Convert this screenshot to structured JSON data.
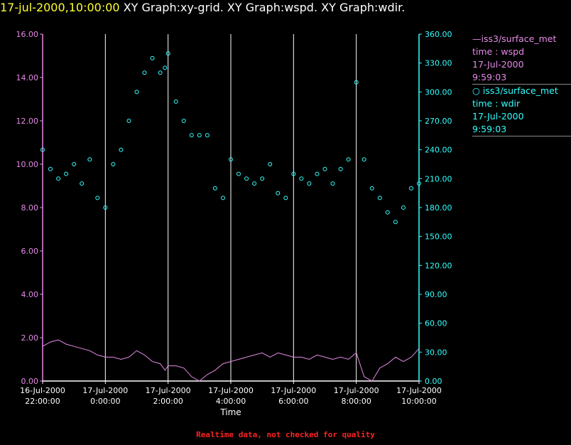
{
  "header": {
    "timestamp": "17-jul-2000,10:00:00",
    "graphs": "XY Graph:xy-grid.  XY Graph:wspd.  XY Graph:wdir."
  },
  "legend": {
    "series1": {
      "name": "iss3/surface_met",
      "vars": "time : wspd",
      "date": "17-Jul-2000",
      "time": "9:59:03"
    },
    "series2": {
      "name": "iss3/surface_met",
      "vars": "time : wdir",
      "date": "17-Jul-2000",
      "time": "9:59:03"
    }
  },
  "footer": "Realtime data, not checked for quality",
  "colors": {
    "wspd": "#e58ae5",
    "wdir": "#33ffff",
    "title": "#ffff33",
    "footer": "#ff2222",
    "grid": "#ffffff"
  },
  "chart_data": {
    "type": "scatter",
    "xlabel": "Time",
    "x_unit": "hours since 16-Jul-2000 22:00",
    "xlim": [
      0,
      12
    ],
    "x_ticks": [
      {
        "value": 0,
        "date": "16-Jul-2000",
        "time": "22:00:00"
      },
      {
        "value": 2,
        "date": "17-Jul-2000",
        "time": "0:00:00"
      },
      {
        "value": 4,
        "date": "17-Jul-2000",
        "time": "2:00:00"
      },
      {
        "value": 6,
        "date": "17-Jul-2000",
        "time": "4:00:00"
      },
      {
        "value": 8,
        "date": "17-Jul-2000",
        "time": "6:00:00"
      },
      {
        "value": 10,
        "date": "17-Jul-2000",
        "time": "8:00:00"
      },
      {
        "value": 12,
        "date": "17-Jul-2000",
        "time": "10:00:00"
      }
    ],
    "vertical_grid": true,
    "left_axis": {
      "variable": "wspd",
      "ylim": [
        0,
        16
      ],
      "ticks": [
        "0.00",
        "2.00",
        "4.00",
        "6.00",
        "8.00",
        "10.00",
        "12.00",
        "14.00",
        "16.00"
      ]
    },
    "right_axis": {
      "variable": "wdir",
      "ylim": [
        0,
        360
      ],
      "ticks": [
        "0.00",
        "30.00",
        "60.00",
        "90.00",
        "120.00",
        "150.00",
        "180.00",
        "210.00",
        "240.00",
        "270.00",
        "300.00",
        "330.00",
        "360.00"
      ]
    },
    "series": [
      {
        "name": "wspd",
        "style": "line",
        "axis": "left",
        "x": [
          0.0,
          0.25,
          0.5,
          0.75,
          1.0,
          1.25,
          1.5,
          1.75,
          2.0,
          2.25,
          2.5,
          2.75,
          3.0,
          3.25,
          3.5,
          3.75,
          3.9,
          4.0,
          4.25,
          4.5,
          4.75,
          5.0,
          5.25,
          5.5,
          5.75,
          6.0,
          6.25,
          6.5,
          6.75,
          7.0,
          7.25,
          7.5,
          7.75,
          8.0,
          8.25,
          8.5,
          8.75,
          9.0,
          9.25,
          9.5,
          9.75,
          10.0,
          10.25,
          10.5,
          10.75,
          11.0,
          11.25,
          11.5,
          11.75,
          12.0
        ],
        "y": [
          1.6,
          1.8,
          1.9,
          1.7,
          1.6,
          1.5,
          1.4,
          1.2,
          1.1,
          1.1,
          1.0,
          1.1,
          1.4,
          1.2,
          0.9,
          0.8,
          0.5,
          0.7,
          0.7,
          0.6,
          0.2,
          0.0,
          0.3,
          0.5,
          0.8,
          0.9,
          1.0,
          1.1,
          1.2,
          1.3,
          1.1,
          1.3,
          1.2,
          1.1,
          1.1,
          1.0,
          1.2,
          1.1,
          1.0,
          1.1,
          1.0,
          1.3,
          0.2,
          0.0,
          0.6,
          0.8,
          1.1,
          0.9,
          1.1,
          1.5
        ]
      },
      {
        "name": "wdir",
        "style": "dots",
        "axis": "right",
        "x": [
          0.0,
          0.25,
          0.5,
          0.75,
          1.0,
          1.25,
          1.5,
          1.75,
          2.0,
          2.25,
          2.5,
          2.75,
          3.0,
          3.25,
          3.5,
          3.75,
          3.9,
          4.0,
          4.25,
          4.5,
          4.75,
          5.0,
          5.25,
          5.5,
          5.75,
          6.0,
          6.25,
          6.5,
          6.75,
          7.0,
          7.25,
          7.5,
          7.75,
          8.0,
          8.25,
          8.5,
          8.75,
          9.0,
          9.25,
          9.5,
          9.75,
          10.0,
          10.25,
          10.5,
          10.75,
          11.0,
          11.25,
          11.5,
          11.75,
          12.0
        ],
        "y": [
          240,
          220,
          210,
          215,
          225,
          205,
          230,
          190,
          180,
          225,
          240,
          270,
          300,
          320,
          335,
          320,
          325,
          340,
          290,
          270,
          255,
          255,
          255,
          200,
          190,
          230,
          215,
          210,
          205,
          210,
          225,
          195,
          190,
          215,
          210,
          205,
          215,
          220,
          205,
          220,
          230,
          310,
          230,
          200,
          190,
          175,
          165,
          180,
          200,
          205
        ]
      }
    ]
  }
}
